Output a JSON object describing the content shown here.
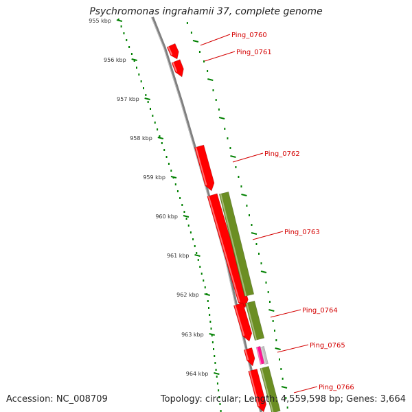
{
  "title": "Psychromonas ingrahamii 37, complete genome",
  "footer": {
    "accession": "Accession: NC_008709",
    "stats": "Topology: circular; Length: 4,559,598 bp; Genes: 3,664"
  },
  "colors": {
    "cds": "#ff0000",
    "gene": "#6b8e23",
    "rna": "#ff1493",
    "rna_gene": "#c0c0c0",
    "backbone": "#808080",
    "ticks": "#008000",
    "label": "#d40000"
  },
  "ruler": [
    {
      "label": "955 kbp"
    },
    {
      "label": "956 kbp"
    },
    {
      "label": "957 kbp"
    },
    {
      "label": "958 kbp"
    },
    {
      "label": "959 kbp"
    },
    {
      "label": "960 kbp"
    },
    {
      "label": "961 kbp"
    },
    {
      "label": "962 kbp"
    },
    {
      "label": "963 kbp"
    },
    {
      "label": "964 kbp"
    }
  ],
  "genes": [
    {
      "name": "Ping_0760"
    },
    {
      "name": "Ping_0761"
    },
    {
      "name": "Ping_0762"
    },
    {
      "name": "Ping_0763"
    },
    {
      "name": "Ping_0764"
    },
    {
      "name": "Ping_0765"
    },
    {
      "name": "Ping_0766"
    }
  ]
}
